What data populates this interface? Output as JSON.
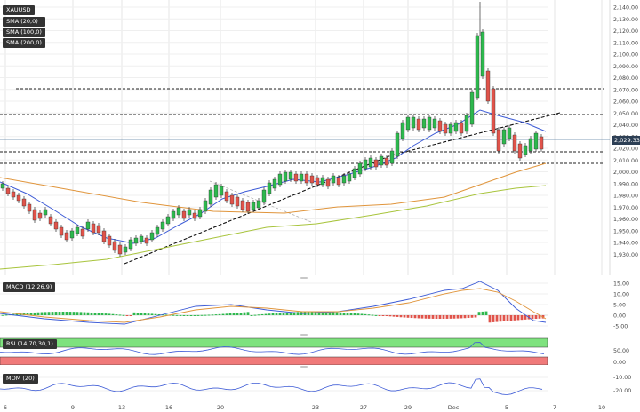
{
  "main": {
    "symbol": "XAUUSD",
    "indicators": [
      "SMA (20,0)",
      "SMA (100,0)",
      "SMA (200,0)"
    ],
    "price_ticks": [
      "2,140.00",
      "2,130.00",
      "2,120.00",
      "2,110.00",
      "2,100.00",
      "2,090.00",
      "2,080.00",
      "2,070.00",
      "2,060.00",
      "2,050.00",
      "2,040.00",
      "2,030.00",
      "2,020.00",
      "2,010.00",
      "2,000.00",
      "1,990.00",
      "1,980.00",
      "1,970.00",
      "1,960.00",
      "1,950.00",
      "1,940.00",
      "1,930.00"
    ],
    "current_price": "2,029.33",
    "colors": {
      "up": "#2db84d",
      "down": "#e0534a",
      "sma20": "#3d5bd6",
      "sma100": "#e0953c",
      "sma200": "#a8c43c"
    }
  },
  "macd": {
    "label": "MACD (12,26,9)",
    "ticks": [
      "15.00",
      "10.00",
      "5.00",
      "0.00",
      "-5.00"
    ]
  },
  "rsi": {
    "label": "RSI (14,70,30,1)",
    "ticks": [
      "50.00",
      "0.00"
    ]
  },
  "mom": {
    "label": "MOM (20)",
    "ticks": [
      "-10.00",
      "-20.00"
    ]
  },
  "x_axis": {
    "labels": [
      "6",
      "9",
      "13",
      "16",
      "20",
      "23",
      "27",
      "29",
      "Dec",
      "5",
      "7",
      "10"
    ]
  }
}
